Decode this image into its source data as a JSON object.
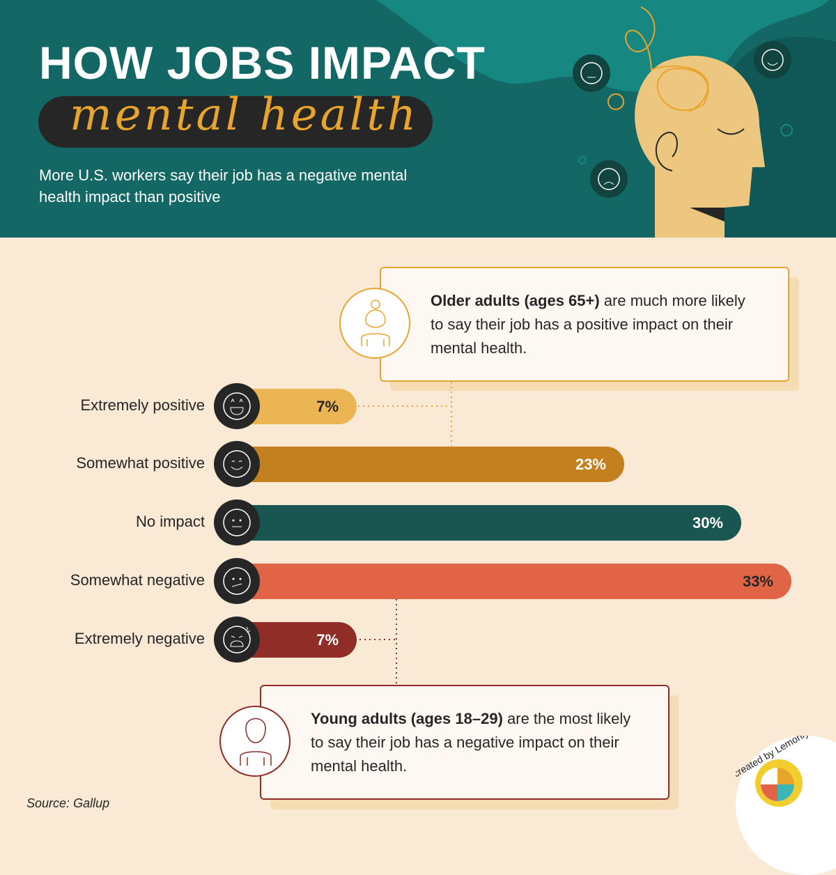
{
  "header": {
    "title": "HOW JOBS IMPACT",
    "script_title": "mental health",
    "subtitle": "More U.S. workers say their job has a negative mental health impact than positive"
  },
  "colors": {
    "header_bg": "#136865",
    "background": "#f9e9d5",
    "extremely_positive": "#ebb553",
    "somewhat_positive": "#c47f1e",
    "no_impact": "#195651",
    "somewhat_negative": "#e26447",
    "extremely_negative": "#8f2d26"
  },
  "chart_data": {
    "type": "bar",
    "orientation": "horizontal",
    "categories": [
      "Extremely positive",
      "Somewhat positive",
      "No impact",
      "Somewhat negative",
      "Extremely negative"
    ],
    "values": [
      7,
      23,
      30,
      33,
      7
    ],
    "value_labels": [
      "7%",
      "23%",
      "30%",
      "33%",
      "7%"
    ],
    "icons": [
      "star-eyes-face-icon",
      "smiling-face-icon",
      "neutral-face-icon",
      "confused-face-icon",
      "angry-face-icon"
    ],
    "grid": false
  },
  "callout_top": {
    "bold": "Older adults (ages 65+)",
    "text": " are much more likely to say their job has a positive impact on their mental health.",
    "icon": "older-adult-icon"
  },
  "callout_bottom": {
    "bold": "Young adults (ages 18–29)",
    "text": " are the most likely to say their job has a negative impact on their mental health.",
    "icon": "young-adult-icon"
  },
  "source": {
    "label": "Source:",
    "value": "Gallup"
  },
  "logo": {
    "text": "created by Lemonly"
  }
}
